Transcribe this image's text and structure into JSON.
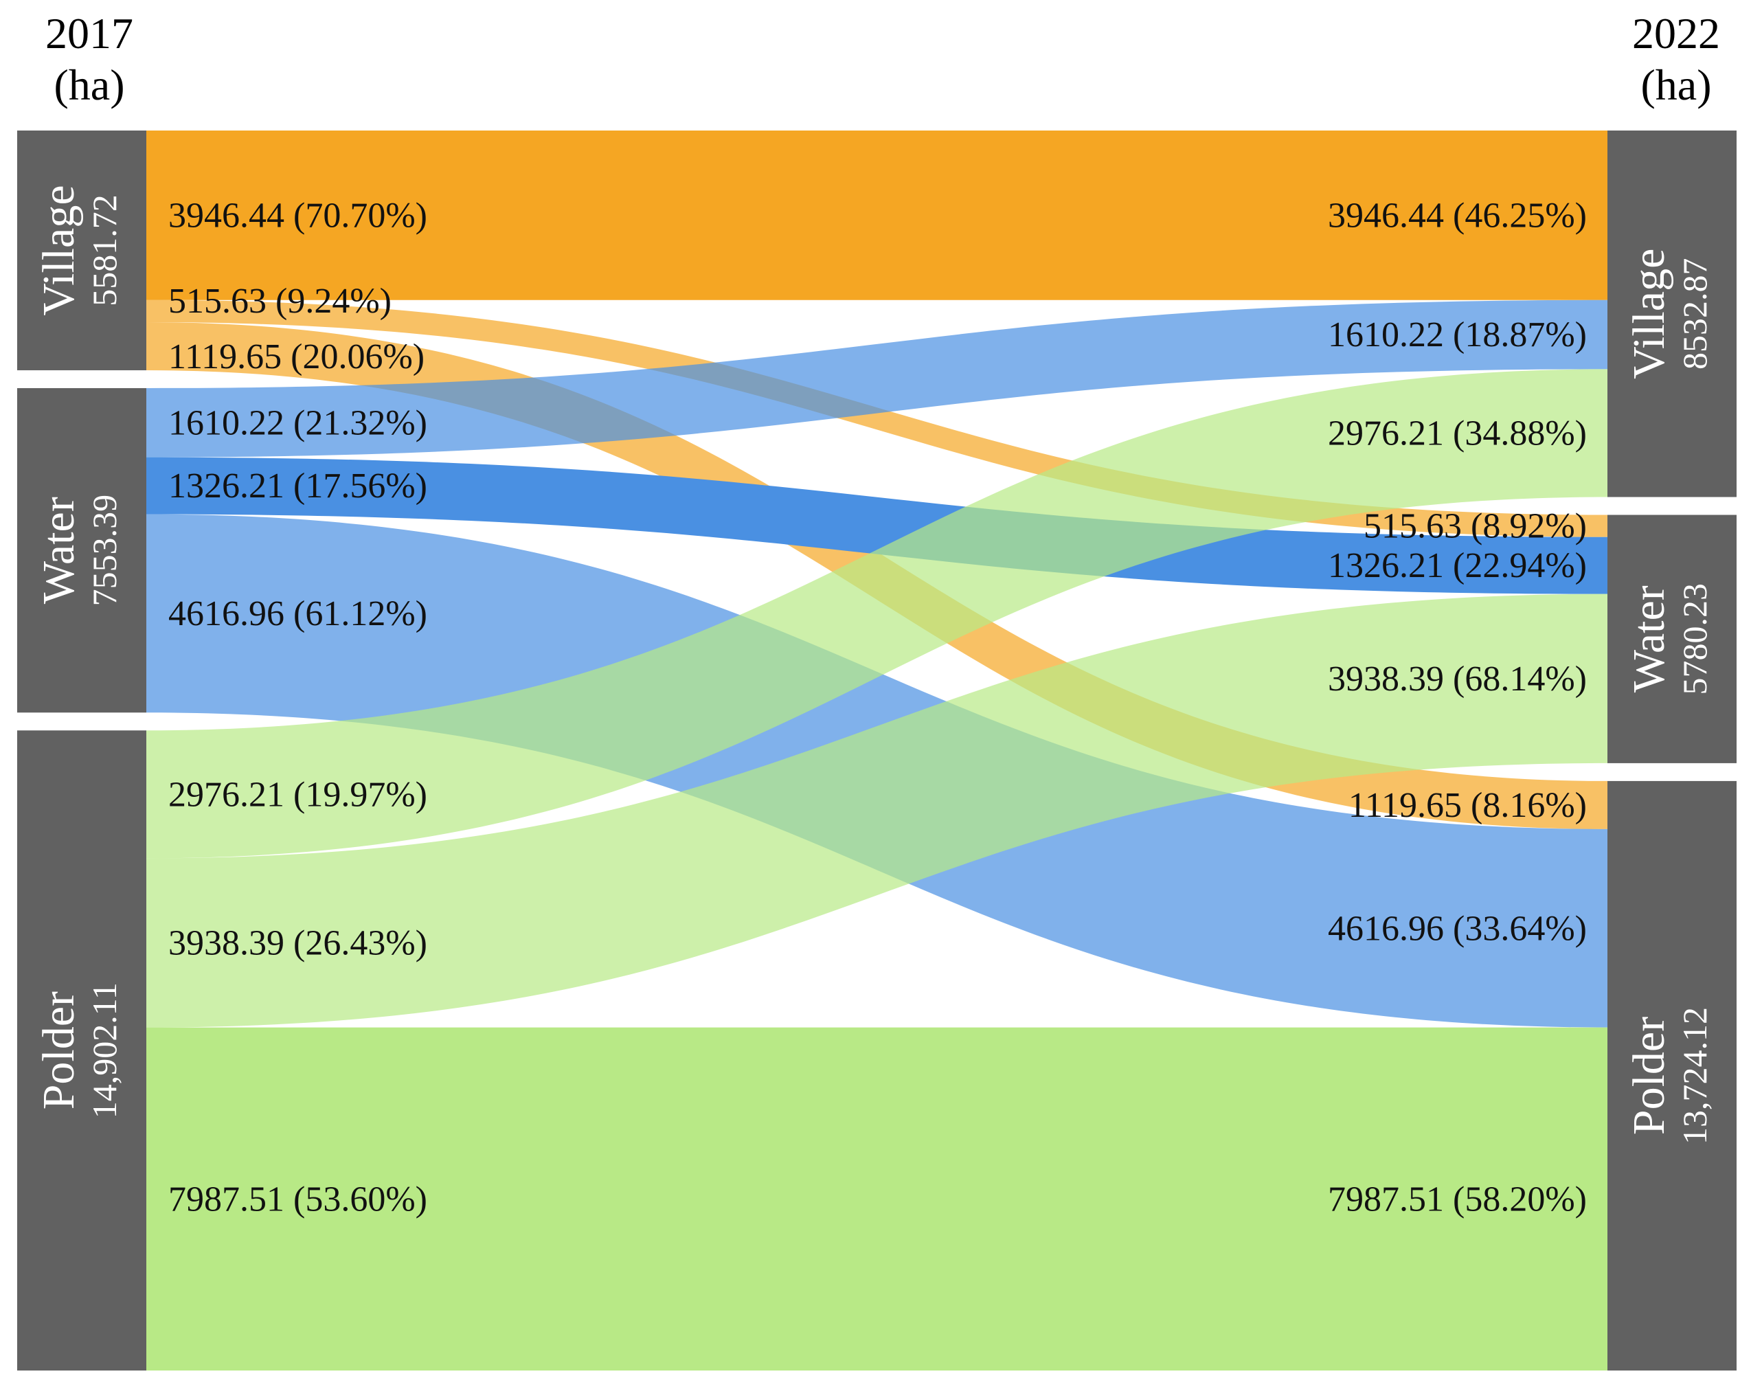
{
  "chart_data": {
    "type": "sankey",
    "unit": "ha",
    "left_header": {
      "year": "2017",
      "unit_label": "(ha)"
    },
    "right_header": {
      "year": "2022",
      "unit_label": "(ha)"
    },
    "colors": {
      "Village": "#F5A623",
      "Water": "#4A90E2",
      "Polder": "#B8E986",
      "node": "#616161"
    },
    "left_nodes": [
      {
        "name": "Village",
        "total": "5581.72",
        "value": 5581.72
      },
      {
        "name": "Water",
        "total": "7553.39",
        "value": 7553.39
      },
      {
        "name": "Polder",
        "total": "14,902.11",
        "value": 14902.11
      }
    ],
    "right_nodes": [
      {
        "name": "Village",
        "total": "8532.87",
        "value": 8532.87
      },
      {
        "name": "Water",
        "total": "5780.23",
        "value": 5780.23
      },
      {
        "name": "Polder",
        "total": "13,724.12",
        "value": 13724.12
      }
    ],
    "flows": [
      {
        "from": "Village",
        "to": "Village",
        "value": 3946.44,
        "left_label": "3946.44 (70.70%)",
        "right_label": "3946.44 (46.25%)"
      },
      {
        "from": "Village",
        "to": "Water",
        "value": 515.63,
        "left_label": "515.63   (9.24%)",
        "right_label": "515.63    (8.92%)"
      },
      {
        "from": "Village",
        "to": "Polder",
        "value": 1119.65,
        "left_label": "1119.65 (20.06%)",
        "right_label": "1119.65 (8.16%)"
      },
      {
        "from": "Water",
        "to": "Village",
        "value": 1610.22,
        "left_label": "1610.22 (21.32%)",
        "right_label": "1610.22 (18.87%)"
      },
      {
        "from": "Water",
        "to": "Water",
        "value": 1326.21,
        "left_label": "1326.21 (17.56%)",
        "right_label": "1326.21  (22.94%)"
      },
      {
        "from": "Water",
        "to": "Polder",
        "value": 4616.96,
        "left_label": "4616.96 (61.12%)",
        "right_label": "4616.96  (33.64%)"
      },
      {
        "from": "Polder",
        "to": "Village",
        "value": 2976.21,
        "left_label": "2976.21 (19.97%)",
        "right_label": "2976.21 (34.88%)"
      },
      {
        "from": "Polder",
        "to": "Water",
        "value": 3938.39,
        "left_label": "3938.39 (26.43%)",
        "right_label": "3938.39 (68.14%)"
      },
      {
        "from": "Polder",
        "to": "Polder",
        "value": 7987.51,
        "left_label": "7987.51 (53.60%)",
        "right_label": "7987.51 (58.20%)"
      }
    ]
  }
}
